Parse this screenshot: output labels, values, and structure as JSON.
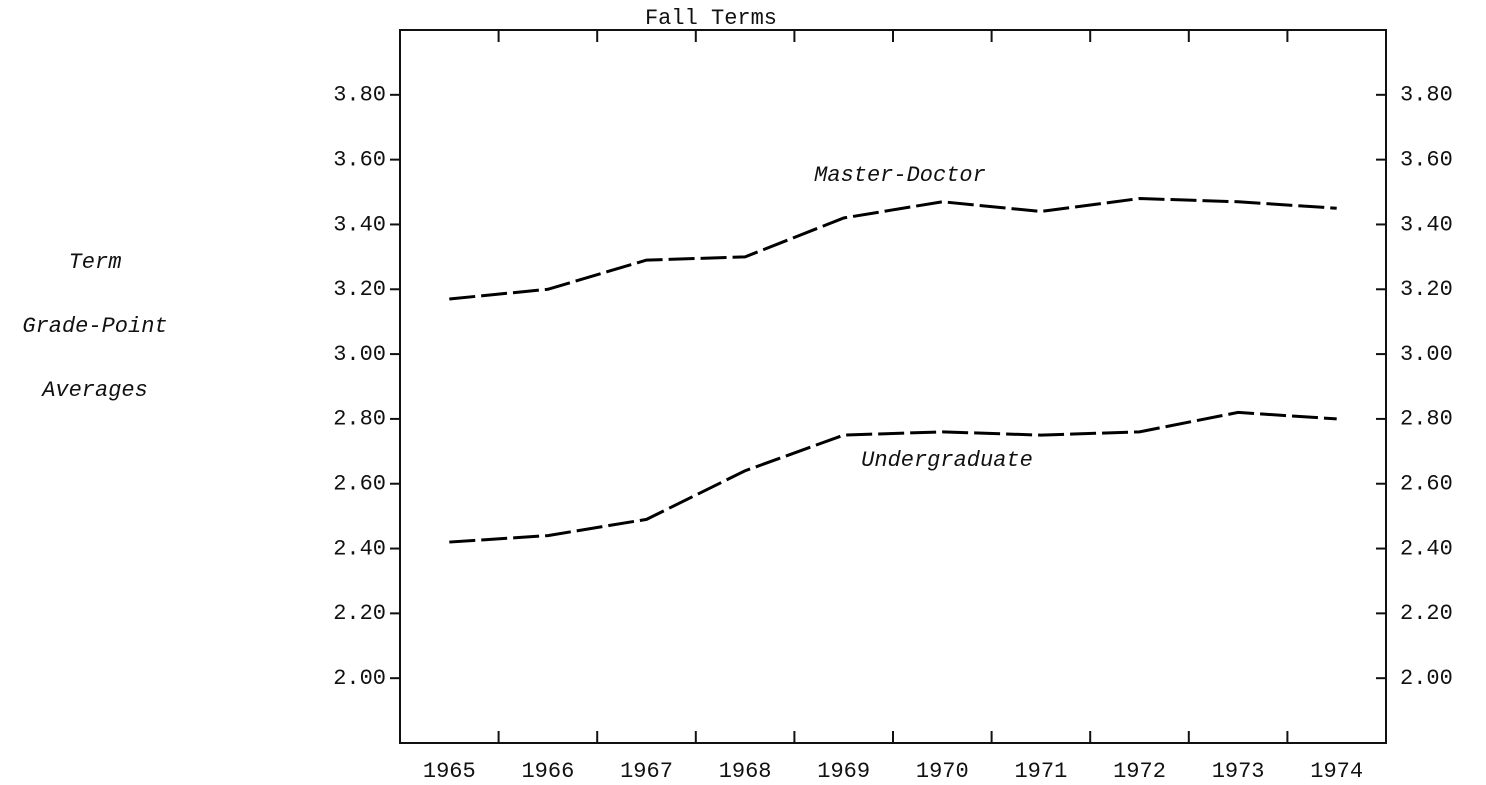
{
  "chart_data": {
    "type": "line",
    "title": "Fall Terms",
    "ylabel": [
      "Term",
      "Grade-Point",
      "Averages"
    ],
    "categories": [
      "1965",
      "1966",
      "1967",
      "1968",
      "1969",
      "1970",
      "1971",
      "1972",
      "1973",
      "1974"
    ],
    "series": [
      {
        "name": "Master-Doctor",
        "color": "#000000",
        "values": [
          3.17,
          3.2,
          3.29,
          3.3,
          3.42,
          3.47,
          3.44,
          3.48,
          3.47,
          3.45
        ]
      },
      {
        "name": "Undergraduate",
        "color": "#000000",
        "values": [
          2.42,
          2.44,
          2.49,
          2.64,
          2.75,
          2.76,
          2.75,
          2.76,
          2.82,
          2.8
        ]
      }
    ],
    "ylim": [
      1.8,
      4.0
    ],
    "yticks": [
      {
        "value": 2.0,
        "label": "2.00"
      },
      {
        "value": 2.2,
        "label": "2.20"
      },
      {
        "value": 2.4,
        "label": "2.40"
      },
      {
        "value": 2.6,
        "label": "2.60"
      },
      {
        "value": 2.8,
        "label": "2.80"
      },
      {
        "value": 3.0,
        "label": "3.00"
      },
      {
        "value": 3.2,
        "label": "3.20"
      },
      {
        "value": 3.4,
        "label": "3.40"
      },
      {
        "value": 3.6,
        "label": "3.60"
      },
      {
        "value": 3.8,
        "label": "3.80"
      }
    ],
    "grid": false
  }
}
